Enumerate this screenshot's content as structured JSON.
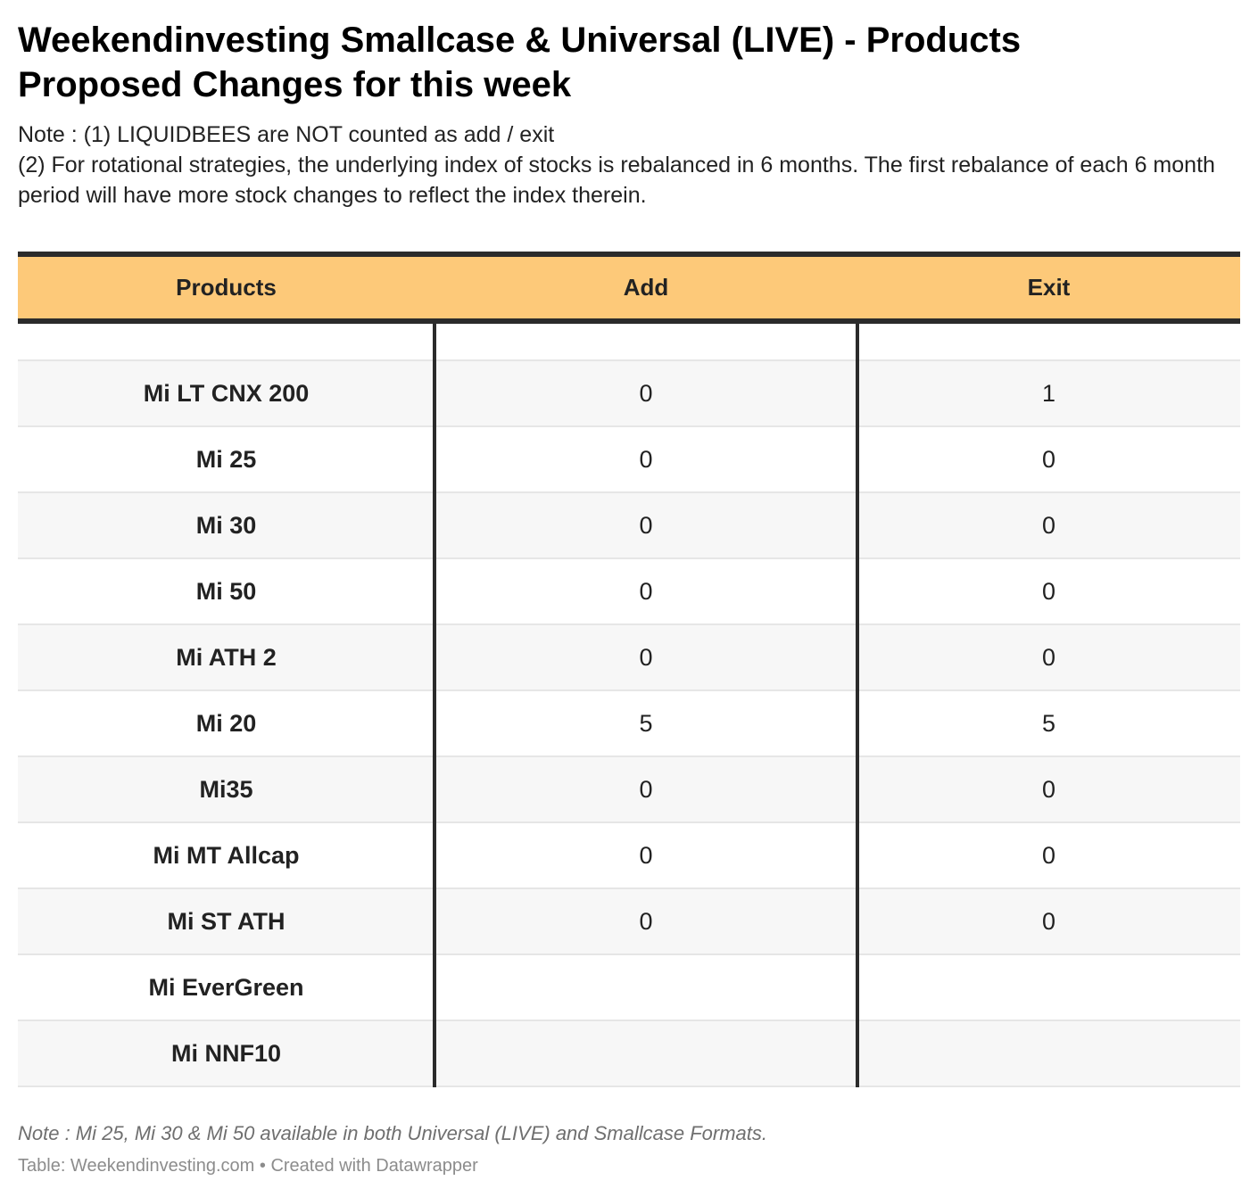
{
  "title": "Weekendinvesting Smallcase & Universal (LIVE) - Products Proposed Changes for this week",
  "notes": [
    "Note : (1) LIQUIDBEES are NOT counted as add / exit",
    "(2) For rotational strategies, the underlying index of stocks is rebalanced in 6 months. The first rebalance of each 6 month period will have more stock changes to reflect the index therein."
  ],
  "chart_data": {
    "type": "table",
    "columns": [
      "Products",
      "Add",
      "Exit"
    ],
    "rows": [
      {
        "product": "Mi LT CNX 200",
        "add": "0",
        "exit": "1"
      },
      {
        "product": "Mi 25",
        "add": "0",
        "exit": "0"
      },
      {
        "product": "Mi 30",
        "add": "0",
        "exit": "0"
      },
      {
        "product": "Mi 50",
        "add": "0",
        "exit": "0"
      },
      {
        "product": "Mi ATH 2",
        "add": "0",
        "exit": "0"
      },
      {
        "product": "Mi 20",
        "add": "5",
        "exit": "5"
      },
      {
        "product": "Mi35",
        "add": "0",
        "exit": "0"
      },
      {
        "product": "Mi MT Allcap",
        "add": "0",
        "exit": "0"
      },
      {
        "product": "Mi ST ATH",
        "add": "0",
        "exit": "0"
      },
      {
        "product": "Mi EverGreen",
        "add": "",
        "exit": ""
      },
      {
        "product": "Mi NNF10",
        "add": "",
        "exit": ""
      }
    ],
    "header_color": "#fdc979"
  },
  "footer": {
    "note": "Note : Mi 25, Mi 30 & Mi 50 available in both Universal (LIVE) and Smallcase Formats.",
    "credit": "Table: Weekendinvesting.com • Created with Datawrapper"
  }
}
